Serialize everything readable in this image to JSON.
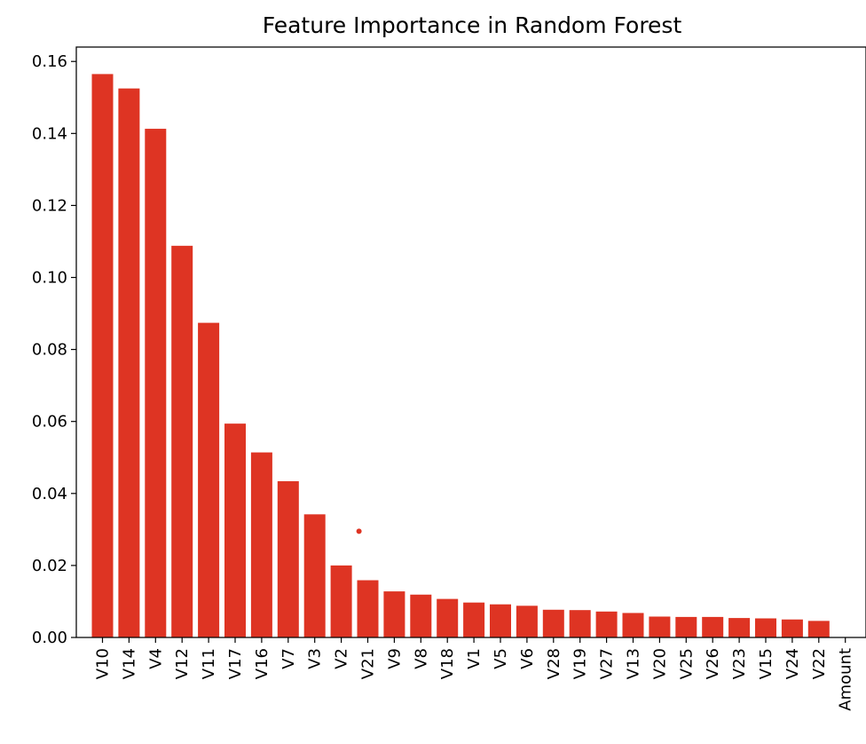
{
  "chart_data": {
    "type": "bar",
    "title": "Feature Importance in Random Forest",
    "xlabel": "",
    "ylabel": "",
    "ylim": [
      0,
      0.164
    ],
    "yticks": [
      "0.00",
      "0.02",
      "0.04",
      "0.06",
      "0.08",
      "0.10",
      "0.12",
      "0.14",
      "0.16"
    ],
    "grid": false,
    "bar_color": "#de3423",
    "categories": [
      "V10",
      "V14",
      "V4",
      "V12",
      "V11",
      "V17",
      "V16",
      "V7",
      "V3",
      "V2",
      "V21",
      "V9",
      "V8",
      "V18",
      "V1",
      "V5",
      "V6",
      "V28",
      "V19",
      "V27",
      "V13",
      "V20",
      "V25",
      "V26",
      "V23",
      "V15",
      "V24",
      "V22",
      "Amount"
    ],
    "values": [
      0.1565,
      0.1525,
      0.1413,
      0.1088,
      0.0874,
      0.0594,
      0.0514,
      0.0434,
      0.0342,
      0.02,
      0.0159,
      0.0128,
      0.0119,
      0.0107,
      0.0097,
      0.0092,
      0.0088,
      0.0077,
      0.0076,
      0.0072,
      0.0068,
      0.0058,
      0.0057,
      0.0057,
      0.0054,
      0.0053,
      0.005,
      0.0046,
      0.0
    ],
    "annotations": [
      {
        "type": "point",
        "x": "V2",
        "y": 0.0295,
        "color": "#de3423"
      }
    ]
  }
}
